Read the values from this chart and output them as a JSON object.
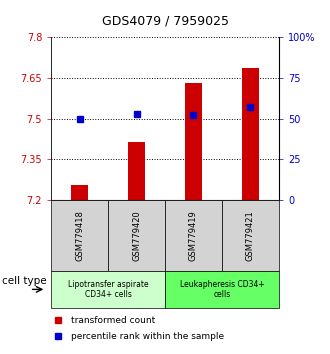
{
  "title": "GDS4079 / 7959025",
  "samples": [
    "GSM779418",
    "GSM779420",
    "GSM779419",
    "GSM779421"
  ],
  "transformed_counts": [
    7.255,
    7.415,
    7.63,
    7.685
  ],
  "percentile_ranks": [
    50,
    53,
    52,
    57
  ],
  "ylim_left": [
    7.2,
    7.8
  ],
  "ylim_right": [
    0,
    100
  ],
  "yticks_left": [
    7.2,
    7.35,
    7.5,
    7.65,
    7.8
  ],
  "yticks_right": [
    0,
    25,
    50,
    75,
    100
  ],
  "ytick_labels_left": [
    "7.2",
    "7.35",
    "7.5",
    "7.65",
    "7.8"
  ],
  "ytick_labels_right": [
    "0",
    "25",
    "50",
    "75",
    "100%"
  ],
  "bar_color": "#cc0000",
  "dot_color": "#0000cc",
  "bar_bottom": 7.2,
  "cell_groups": [
    {
      "label": "Lipotransfer aspirate\nCD34+ cells",
      "color": "#ccffcc",
      "start": 0,
      "end": 2
    },
    {
      "label": "Leukapheresis CD34+\ncells",
      "color": "#66ff66",
      "start": 2,
      "end": 4
    }
  ],
  "legend_bar_label": "transformed count",
  "legend_dot_label": "percentile rank within the sample",
  "cell_type_label": "cell type",
  "left_tick_color": "#cc0000",
  "right_tick_color": "#0000cc",
  "sample_box_color": "#d3d3d3",
  "title_fontsize": 9,
  "tick_fontsize": 7,
  "sample_fontsize": 6,
  "cell_fontsize": 5.5,
  "legend_fontsize": 6.5
}
